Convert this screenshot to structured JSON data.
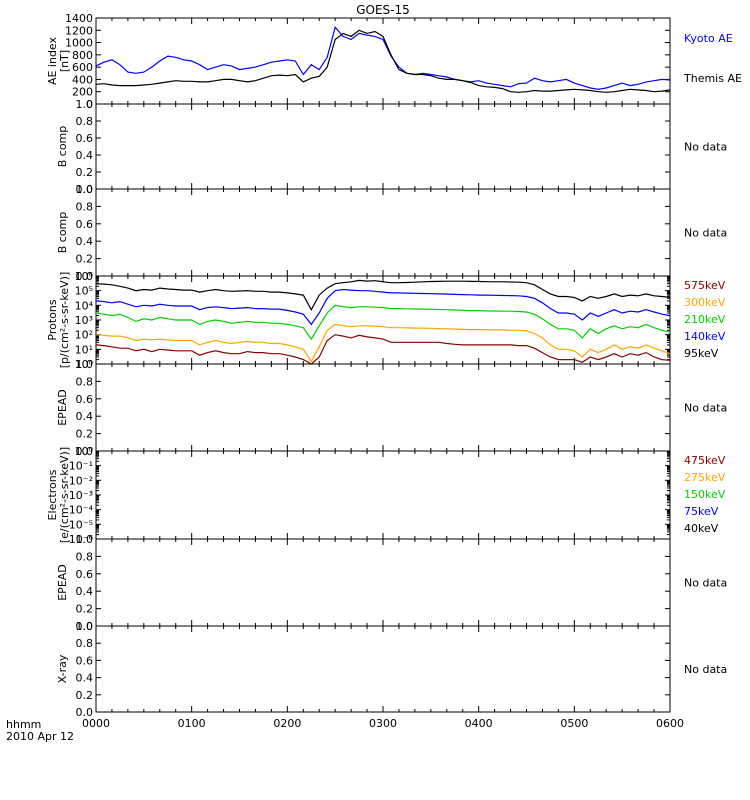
{
  "title": "GOES-15",
  "time_axis": {
    "labels": [
      "0000",
      "0100",
      "0200",
      "0300",
      "0400",
      "0500",
      "0600"
    ],
    "corner_label_1": "hhmm",
    "corner_label_2": "2010 Apr 12"
  },
  "panels": [
    {
      "id": "ae-index",
      "ylabel_lines": [
        "AE index",
        "[nT]"
      ],
      "ytick_labels": [
        "0",
        "200",
        "400",
        "600",
        "800",
        "1000",
        "1200",
        "1400"
      ],
      "right_labels": [
        {
          "text": "Kyoto AE",
          "color": "#0000ff"
        },
        {
          "text": "Themis AE",
          "color": "#000000"
        }
      ]
    },
    {
      "id": "b-comp-1",
      "ylabel_lines": [
        "B comp"
      ],
      "ytick_labels": [
        "0.0",
        "0.2",
        "0.4",
        "0.6",
        "0.8",
        "1.0"
      ],
      "note": "No data"
    },
    {
      "id": "b-comp-2",
      "ylabel_lines": [
        "B comp"
      ],
      "ytick_labels": [
        "0.0",
        "0.2",
        "0.4",
        "0.6",
        "0.8",
        "1.0"
      ],
      "note": "No data"
    },
    {
      "id": "protons",
      "ylabel_lines": [
        "Protons",
        "[p/(cm²-s-sr-keV)]"
      ],
      "ytick_labels": [
        "10⁰",
        "10¹",
        "10²",
        "10³",
        "10⁴",
        "10⁵",
        "10⁶"
      ],
      "right_labels": [
        {
          "text": "575keV",
          "color": "#8b0000"
        },
        {
          "text": "300keV",
          "color": "#ffa500"
        },
        {
          "text": "210keV",
          "color": "#00d000"
        },
        {
          "text": "140keV",
          "color": "#0000ff"
        },
        {
          "text": "95keV",
          "color": "#000000"
        }
      ]
    },
    {
      "id": "epead-1",
      "ylabel_lines": [
        "EPEAD"
      ],
      "ytick_labels": [
        "0.0",
        "0.2",
        "0.4",
        "0.6",
        "0.8",
        "1.0"
      ],
      "note": "No data"
    },
    {
      "id": "electrons",
      "ylabel_lines": [
        "Electrons",
        "[e/(cm²-s-sr-keV)]"
      ],
      "ytick_labels": [
        "10⁻⁶",
        "10⁻⁵",
        "10⁻⁴",
        "10⁻³",
        "10⁻²",
        "10⁻¹",
        "10⁰"
      ],
      "right_labels": [
        {
          "text": "475keV",
          "color": "#8b0000"
        },
        {
          "text": "275keV",
          "color": "#ffa500"
        },
        {
          "text": "150keV",
          "color": "#00d000"
        },
        {
          "text": "75keV",
          "color": "#0000ff"
        },
        {
          "text": "40keV",
          "color": "#000000"
        }
      ]
    },
    {
      "id": "epead-2",
      "ylabel_lines": [
        "EPEAD"
      ],
      "ytick_labels": [
        "0.0",
        "0.2",
        "0.4",
        "0.6",
        "0.8",
        "1.0"
      ],
      "note": "No data"
    },
    {
      "id": "x-ray",
      "ylabel_lines": [
        "X-ray"
      ],
      "ytick_labels": [
        "0.0",
        "0.2",
        "0.4",
        "0.6",
        "0.8",
        "1.0"
      ],
      "note": "No data"
    }
  ],
  "chart_data": [
    {
      "type": "line",
      "panel": "ae-index",
      "xlabel": "hhmm",
      "ylabel": "AE index [nT]",
      "ylim": [
        0,
        1400
      ],
      "xlim": [
        "0000",
        "0600"
      ],
      "x": [
        "0000",
        "0005",
        "0010",
        "0015",
        "0020",
        "0025",
        "0030",
        "0035",
        "0040",
        "0045",
        "0050",
        "0055",
        "0100",
        "0105",
        "0110",
        "0115",
        "0120",
        "0125",
        "0130",
        "0135",
        "0140",
        "0145",
        "0150",
        "0155",
        "0200",
        "0205",
        "0210",
        "0215",
        "0220",
        "0225",
        "0230",
        "0235",
        "0240",
        "0245",
        "0250",
        "0255",
        "0300",
        "0305",
        "0310",
        "0315",
        "0320",
        "0325",
        "0330",
        "0335",
        "0340",
        "0345",
        "0350",
        "0355",
        "0400",
        "0405",
        "0410",
        "0415",
        "0420",
        "0425",
        "0430",
        "0435",
        "0440",
        "0445",
        "0450",
        "0455",
        "0500",
        "0505",
        "0510",
        "0515",
        "0520",
        "0525",
        "0530",
        "0535",
        "0540",
        "0545",
        "0550",
        "0555",
        "0600"
      ],
      "series": [
        {
          "name": "Kyoto AE",
          "color": "#0000ff",
          "values": [
            620,
            680,
            720,
            640,
            520,
            500,
            520,
            600,
            700,
            780,
            760,
            720,
            700,
            640,
            560,
            600,
            640,
            620,
            560,
            580,
            600,
            640,
            680,
            700,
            720,
            700,
            480,
            640,
            560,
            760,
            1250,
            1100,
            1050,
            1150,
            1120,
            1100,
            1050,
            780,
            600,
            500,
            480,
            500,
            480,
            460,
            440,
            400,
            380,
            360,
            380,
            340,
            320,
            300,
            280,
            330,
            340,
            420,
            380,
            360,
            380,
            400,
            340,
            300,
            260,
            240,
            260,
            300,
            340,
            300,
            320,
            360,
            380,
            400,
            390
          ]
        },
        {
          "name": "Themis AE",
          "color": "#000000",
          "values": [
            320,
            330,
            310,
            300,
            300,
            300,
            310,
            320,
            340,
            360,
            380,
            370,
            370,
            360,
            360,
            380,
            400,
            400,
            380,
            360,
            380,
            420,
            460,
            470,
            460,
            480,
            360,
            420,
            450,
            600,
            1050,
            1150,
            1100,
            1200,
            1150,
            1180,
            1100,
            800,
            560,
            500,
            480,
            480,
            460,
            420,
            400,
            400,
            380,
            350,
            300,
            280,
            270,
            250,
            200,
            190,
            200,
            220,
            210,
            210,
            220,
            230,
            240,
            230,
            220,
            200,
            190,
            200,
            220,
            240,
            230,
            220,
            200,
            210,
            230
          ]
        }
      ]
    },
    {
      "type": "line",
      "panel": "protons",
      "ylabel": "Protons [p/(cm²-s-sr-keV)]",
      "yscale": "log",
      "ylim": [
        1,
        1000000
      ],
      "xlim": [
        "0000",
        "0600"
      ],
      "x": [
        "0000",
        "0005",
        "0010",
        "0015",
        "0020",
        "0025",
        "0030",
        "0035",
        "0040",
        "0045",
        "0050",
        "0055",
        "0100",
        "0105",
        "0110",
        "0115",
        "0120",
        "0125",
        "0130",
        "0135",
        "0140",
        "0145",
        "0150",
        "0155",
        "0200",
        "0205",
        "0210",
        "0215",
        "0220",
        "0225",
        "0230",
        "0235",
        "0240",
        "0245",
        "0250",
        "0255",
        "0300",
        "0305",
        "0310",
        "0315",
        "0320",
        "0325",
        "0330",
        "0335",
        "0340",
        "0345",
        "0350",
        "0355",
        "0400",
        "0405",
        "0410",
        "0415",
        "0420",
        "0425",
        "0430",
        "0435",
        "0440",
        "0445",
        "0450",
        "0455",
        "0500",
        "0505",
        "0510",
        "0515",
        "0520",
        "0525",
        "0530",
        "0535",
        "0540",
        "0545",
        "0550",
        "0555",
        "0600"
      ],
      "series": [
        {
          "name": "575keV",
          "color": "#8b0000",
          "values": [
            20,
            18,
            15,
            12,
            12,
            8,
            10,
            7,
            10,
            9,
            8,
            8,
            8,
            4,
            6,
            8,
            6,
            5,
            5,
            7,
            6,
            6,
            5,
            5,
            4,
            3,
            2,
            0.8,
            3,
            40,
            100,
            80,
            60,
            90,
            70,
            60,
            50,
            30,
            30,
            30,
            30,
            30,
            30,
            30,
            25,
            22,
            20,
            20,
            20,
            20,
            20,
            20,
            20,
            18,
            18,
            12,
            6,
            3,
            2,
            2,
            2,
            1.3,
            3,
            2,
            3,
            5,
            3,
            5,
            4,
            6,
            3,
            2,
            1.8
          ]
        },
        {
          "name": "300keV",
          "color": "#ffa500",
          "values": [
            100,
            90,
            80,
            80,
            60,
            40,
            50,
            45,
            50,
            45,
            40,
            40,
            40,
            20,
            30,
            40,
            30,
            25,
            30,
            35,
            30,
            30,
            25,
            25,
            20,
            15,
            10,
            1.5,
            15,
            200,
            500,
            400,
            350,
            400,
            400,
            380,
            350,
            300,
            300,
            290,
            280,
            280,
            270,
            260,
            250,
            240,
            230,
            220,
            220,
            220,
            210,
            210,
            200,
            200,
            180,
            120,
            60,
            20,
            10,
            10,
            8,
            3,
            10,
            6,
            10,
            20,
            10,
            15,
            12,
            20,
            12,
            8,
            5
          ]
        },
        {
          "name": "210keV",
          "color": "#00d000",
          "values": [
            3000,
            2500,
            2000,
            2500,
            1500,
            800,
            1200,
            1000,
            1500,
            1200,
            1000,
            1000,
            1000,
            500,
            800,
            1000,
            800,
            600,
            700,
            800,
            700,
            700,
            600,
            600,
            500,
            400,
            300,
            50,
            400,
            3000,
            10000,
            8000,
            7000,
            8000,
            8000,
            7500,
            7000,
            6000,
            6000,
            5800,
            5600,
            5500,
            5400,
            5200,
            5000,
            4800,
            4600,
            4400,
            4400,
            4200,
            4100,
            4000,
            4000,
            3800,
            3500,
            2500,
            1200,
            500,
            250,
            250,
            200,
            60,
            250,
            120,
            250,
            400,
            250,
            350,
            300,
            500,
            300,
            200,
            150
          ]
        },
        {
          "name": "140keV",
          "color": "#0000ff",
          "values": [
            20000,
            18000,
            15000,
            18000,
            12000,
            8000,
            10000,
            9000,
            12000,
            10000,
            9000,
            9000,
            9000,
            5000,
            7000,
            8000,
            7000,
            6000,
            6500,
            7000,
            6000,
            6000,
            5500,
            5500,
            4500,
            3500,
            2500,
            500,
            3000,
            30000,
            100000,
            120000,
            110000,
            100000,
            100000,
            90000,
            80000,
            70000,
            70000,
            68000,
            66000,
            64000,
            62000,
            60000,
            58000,
            56000,
            54000,
            52000,
            50000,
            50000,
            48000,
            47000,
            46000,
            45000,
            40000,
            30000,
            15000,
            6000,
            3000,
            3000,
            2500,
            1000,
            3000,
            1800,
            3000,
            5000,
            3000,
            4000,
            3500,
            5000,
            3500,
            2500,
            2000
          ]
        },
        {
          "name": "95keV",
          "color": "#000000",
          "values": [
            300000,
            280000,
            250000,
            200000,
            150000,
            100000,
            120000,
            110000,
            150000,
            130000,
            120000,
            110000,
            110000,
            80000,
            100000,
            120000,
            100000,
            90000,
            95000,
            100000,
            90000,
            90000,
            80000,
            80000,
            70000,
            60000,
            50000,
            5000,
            50000,
            150000,
            300000,
            350000,
            400000,
            500000,
            450000,
            480000,
            400000,
            350000,
            350000,
            360000,
            380000,
            400000,
            420000,
            430000,
            440000,
            440000,
            440000,
            430000,
            420000,
            410000,
            400000,
            400000,
            390000,
            380000,
            350000,
            250000,
            120000,
            60000,
            40000,
            40000,
            35000,
            20000,
            40000,
            30000,
            40000,
            60000,
            40000,
            50000,
            45000,
            60000,
            45000,
            40000,
            35000
          ]
        }
      ]
    },
    {
      "type": "line",
      "panel": "electrons",
      "ylabel": "Electrons [e/(cm²-s-sr-keV)]",
      "yscale": "log",
      "ylim": [
        1e-06,
        1
      ],
      "xlim": [
        "0000",
        "0600"
      ],
      "series": [
        {
          "name": "475keV",
          "color": "#8b0000",
          "values": []
        },
        {
          "name": "275keV",
          "color": "#ffa500",
          "values": []
        },
        {
          "name": "150keV",
          "color": "#00d000",
          "values": []
        },
        {
          "name": "75keV",
          "color": "#0000ff",
          "values": []
        },
        {
          "name": "40keV",
          "color": "#000000",
          "values": []
        }
      ]
    }
  ]
}
